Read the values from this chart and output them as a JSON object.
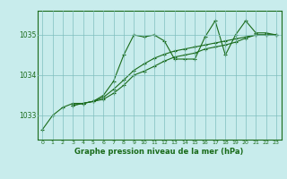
{
  "title": "Graphe pression niveau de la mer (hPa)",
  "bg_color": "#c8ecec",
  "line_color": "#1a6b1a",
  "grid_color": "#7fbfbf",
  "xlim": [
    -0.5,
    23.5
  ],
  "ylim": [
    1032.4,
    1035.6
  ],
  "yticks": [
    1033,
    1034,
    1035
  ],
  "xticks": [
    0,
    1,
    2,
    3,
    4,
    5,
    6,
    7,
    8,
    9,
    10,
    11,
    12,
    13,
    14,
    15,
    16,
    17,
    18,
    19,
    20,
    21,
    22,
    23
  ],
  "line1_x": [
    0,
    1,
    2,
    3,
    4,
    5,
    6,
    7,
    8,
    9,
    10,
    11,
    12,
    13,
    14,
    15,
    16,
    17,
    18,
    19,
    20,
    21,
    22,
    23
  ],
  "line1_y": [
    1032.65,
    1033.0,
    1033.2,
    1033.3,
    1033.3,
    1033.35,
    1033.5,
    1033.85,
    1034.5,
    1035.0,
    1034.95,
    1035.0,
    1034.85,
    1034.4,
    1034.4,
    1034.4,
    1034.95,
    1035.35,
    1034.5,
    1035.0,
    1035.35,
    1035.05,
    1035.05,
    1035.0
  ],
  "line2_x": [
    3,
    4,
    5,
    6,
    7,
    8,
    9,
    10,
    11,
    12,
    13,
    14,
    15,
    16,
    17,
    18,
    19,
    20,
    21,
    22,
    23
  ],
  "line2_y": [
    1033.25,
    1033.3,
    1033.35,
    1033.4,
    1033.55,
    1033.75,
    1034.0,
    1034.1,
    1034.22,
    1034.35,
    1034.45,
    1034.5,
    1034.55,
    1034.65,
    1034.7,
    1034.75,
    1034.82,
    1034.92,
    1035.0,
    1035.0,
    1035.0
  ],
  "line3_x": [
    3,
    4,
    5,
    6,
    7,
    8,
    9,
    10,
    11,
    12,
    13,
    14,
    15,
    16,
    17,
    18,
    19,
    20,
    21,
    22,
    23
  ],
  "line3_y": [
    1033.25,
    1033.3,
    1033.35,
    1033.45,
    1033.65,
    1033.88,
    1034.12,
    1034.28,
    1034.42,
    1034.52,
    1034.6,
    1034.65,
    1034.7,
    1034.75,
    1034.8,
    1034.85,
    1034.9,
    1034.95,
    1035.0,
    1035.0,
    1035.0
  ],
  "xlabel_fontsize": 6.0,
  "ytick_fontsize": 5.5,
  "xtick_fontsize": 4.5
}
